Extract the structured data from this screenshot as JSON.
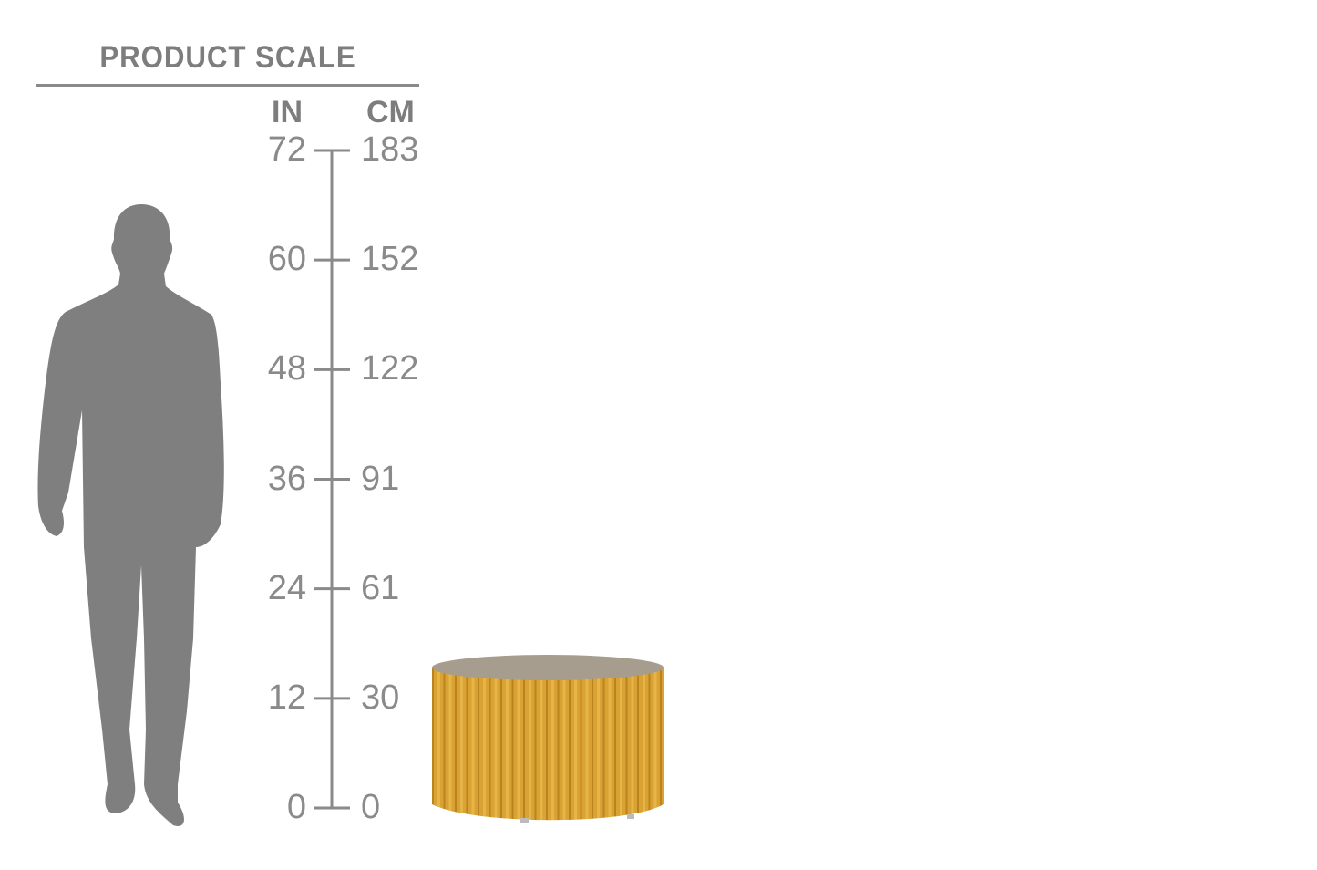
{
  "title": "PRODUCT SCALE",
  "units": {
    "left": "IN",
    "right": "CM"
  },
  "scale": {
    "ticks": [
      {
        "in": "72",
        "cm": "183",
        "value_in": 72
      },
      {
        "in": "60",
        "cm": "152",
        "value_in": 60
      },
      {
        "in": "48",
        "cm": "122",
        "value_in": 48
      },
      {
        "in": "36",
        "cm": "91",
        "value_in": 36
      },
      {
        "in": "24",
        "cm": "61",
        "value_in": 24
      },
      {
        "in": "12",
        "cm": "30",
        "value_in": 12
      },
      {
        "in": "0",
        "cm": "0",
        "value_in": 0
      }
    ]
  },
  "colors": {
    "text": "#8a8a8a",
    "silhouette": "#7f7f80",
    "table_body": "#d9a233",
    "table_top": "#a69d8f"
  }
}
